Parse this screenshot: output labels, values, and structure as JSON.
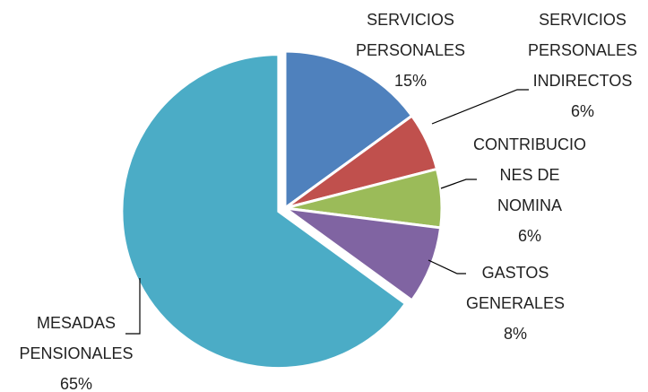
{
  "chart_data": {
    "type": "pie",
    "categories": [
      "SERVICIOS PERSONALES",
      "SERVICIOS PERSONALES INDIRECTOS",
      "CONTRIBUCIONES DE NOMINA",
      "GASTOS GENERALES",
      "MESADAS PENSIONALES"
    ],
    "values": [
      15,
      6,
      6,
      8,
      65
    ],
    "value_labels": [
      "15%",
      "6%",
      "6%",
      "8%",
      "65%"
    ],
    "colors": [
      "#4f81bd",
      "#c0504d",
      "#9bbb59",
      "#8064a2",
      "#4bacc6"
    ]
  }
}
